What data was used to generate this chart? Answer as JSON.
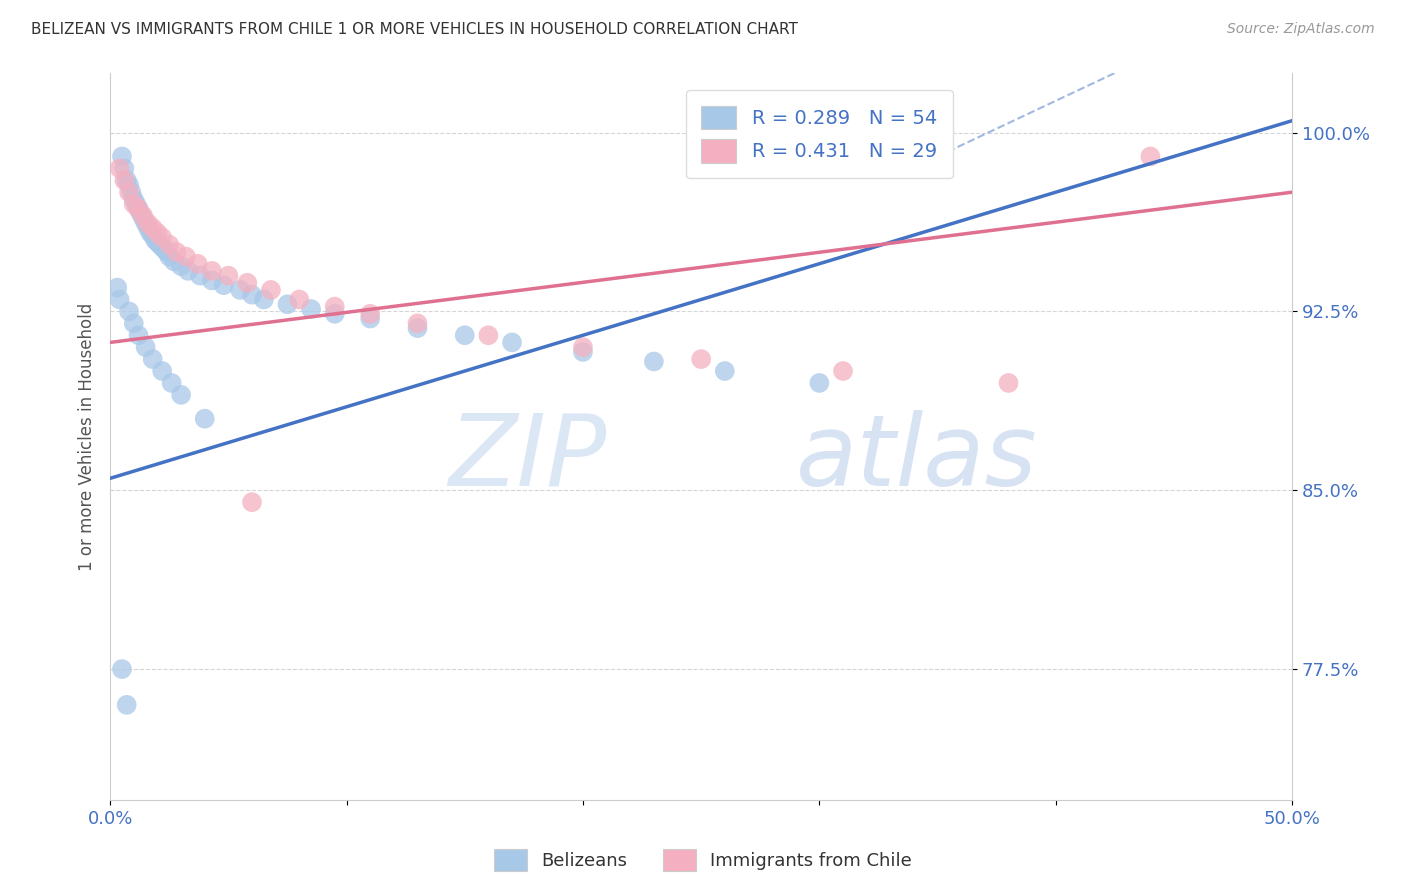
{
  "title": "BELIZEAN VS IMMIGRANTS FROM CHILE 1 OR MORE VEHICLES IN HOUSEHOLD CORRELATION CHART",
  "source": "Source: ZipAtlas.com",
  "ylabel": "1 or more Vehicles in Household",
  "ytick_vals": [
    0.775,
    0.85,
    0.925,
    1.0
  ],
  "ytick_labels": [
    "77.5%",
    "85.0%",
    "92.5%",
    "100.0%"
  ],
  "xlim": [
    0.0,
    0.5
  ],
  "ylim": [
    0.72,
    1.025
  ],
  "legend_blue_r": "R = 0.289",
  "legend_blue_n": "N = 54",
  "legend_pink_r": "R = 0.431",
  "legend_pink_n": "N = 29",
  "watermark_zip": "ZIP",
  "watermark_atlas": "atlas",
  "blue_color": "#a8c8e8",
  "pink_color": "#f4b0c0",
  "line_blue": "#4472c4",
  "line_pink": "#e07090",
  "title_color": "#333333",
  "source_color": "#999999",
  "tick_color": "#4472c4",
  "grid_color": "#cccccc",
  "blue_x": [
    0.005,
    0.006,
    0.007,
    0.008,
    0.009,
    0.01,
    0.011,
    0.012,
    0.013,
    0.014,
    0.015,
    0.016,
    0.017,
    0.018,
    0.019,
    0.02,
    0.021,
    0.022,
    0.023,
    0.024,
    0.025,
    0.027,
    0.03,
    0.033,
    0.038,
    0.043,
    0.048,
    0.055,
    0.06,
    0.065,
    0.075,
    0.085,
    0.095,
    0.11,
    0.13,
    0.15,
    0.17,
    0.2,
    0.23,
    0.26,
    0.3,
    0.003,
    0.004,
    0.008,
    0.01,
    0.012,
    0.015,
    0.018,
    0.022,
    0.026,
    0.03,
    0.04,
    0.005,
    0.007
  ],
  "blue_y": [
    0.99,
    0.985,
    0.98,
    0.978,
    0.975,
    0.972,
    0.97,
    0.968,
    0.966,
    0.964,
    0.962,
    0.96,
    0.958,
    0.957,
    0.955,
    0.954,
    0.953,
    0.952,
    0.951,
    0.95,
    0.948,
    0.946,
    0.944,
    0.942,
    0.94,
    0.938,
    0.936,
    0.934,
    0.932,
    0.93,
    0.928,
    0.926,
    0.924,
    0.922,
    0.918,
    0.915,
    0.912,
    0.908,
    0.904,
    0.9,
    0.895,
    0.935,
    0.93,
    0.925,
    0.92,
    0.915,
    0.91,
    0.905,
    0.9,
    0.895,
    0.89,
    0.88,
    0.775,
    0.76
  ],
  "pink_x": [
    0.004,
    0.006,
    0.008,
    0.01,
    0.012,
    0.014,
    0.016,
    0.018,
    0.02,
    0.022,
    0.025,
    0.028,
    0.032,
    0.037,
    0.043,
    0.05,
    0.058,
    0.068,
    0.08,
    0.095,
    0.11,
    0.13,
    0.16,
    0.2,
    0.25,
    0.31,
    0.38,
    0.44,
    0.06
  ],
  "pink_y": [
    0.985,
    0.98,
    0.975,
    0.97,
    0.968,
    0.965,
    0.962,
    0.96,
    0.958,
    0.956,
    0.953,
    0.95,
    0.948,
    0.945,
    0.942,
    0.94,
    0.937,
    0.934,
    0.93,
    0.927,
    0.924,
    0.92,
    0.915,
    0.91,
    0.905,
    0.9,
    0.895,
    0.99,
    0.845
  ]
}
